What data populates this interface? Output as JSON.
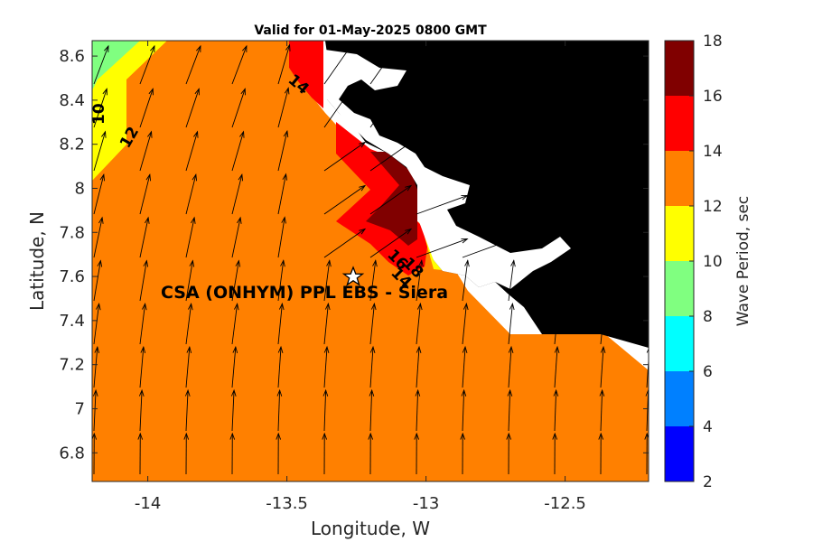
{
  "figure": {
    "title": "Valid for 01-May-2025 0800 GMT",
    "xlabel": "Longitude, W",
    "ylabel": "Latitude, N",
    "colorbar_label": "Wave Period, sec",
    "site_label": "CSA (ONHYM) PPL EBS - Siera",
    "site_marker": "star-icon"
  },
  "chart_data": {
    "type": "heatmap",
    "title": "Valid for 01-May-2025 0800 GMT",
    "xlabel": "Longitude, W",
    "ylabel": "Latitude, N",
    "xlim": [
      -14.2,
      -12.2
    ],
    "ylim": [
      6.67,
      8.67
    ],
    "xticks": [
      -14,
      -13.5,
      -13,
      -12.5
    ],
    "xtick_labels": [
      "-14",
      "-13.5",
      "-13",
      "-12.5"
    ],
    "yticks": [
      6.8,
      7.0,
      7.2,
      7.4,
      7.6,
      7.8,
      8.0,
      8.2,
      8.4,
      8.6
    ],
    "ytick_labels": [
      "6.8",
      "7",
      "7.2",
      "7.4",
      "7.6",
      "7.8",
      "8",
      "8.2",
      "8.4",
      "8.6"
    ],
    "colorbar": {
      "label": "Wave Period, sec",
      "range": [
        2,
        18
      ],
      "ticks": [
        2,
        4,
        6,
        8,
        10,
        12,
        14,
        16,
        18
      ],
      "levels": [
        {
          "from": 2,
          "to": 4,
          "color": "#0000ff"
        },
        {
          "from": 4,
          "to": 6,
          "color": "#0080ff"
        },
        {
          "from": 6,
          "to": 8,
          "color": "#00ffff"
        },
        {
          "from": 8,
          "to": 10,
          "color": "#80ff80"
        },
        {
          "from": 10,
          "to": 12,
          "color": "#ffff00"
        },
        {
          "from": 12,
          "to": 14,
          "color": "#ff8000"
        },
        {
          "from": 14,
          "to": 16,
          "color": "#ff0000"
        },
        {
          "from": 16,
          "to": 18,
          "color": "#800000"
        }
      ]
    },
    "site": {
      "name": "CSA (ONHYM) PPL EBS - Siera",
      "lon": -13.23,
      "lat": 7.6
    },
    "contour_labels": [
      "10",
      "12",
      "14",
      "16",
      "18",
      "14"
    ],
    "colors": {
      "land": "#000000",
      "background": "#ffffff",
      "arrows": "#000000"
    }
  }
}
